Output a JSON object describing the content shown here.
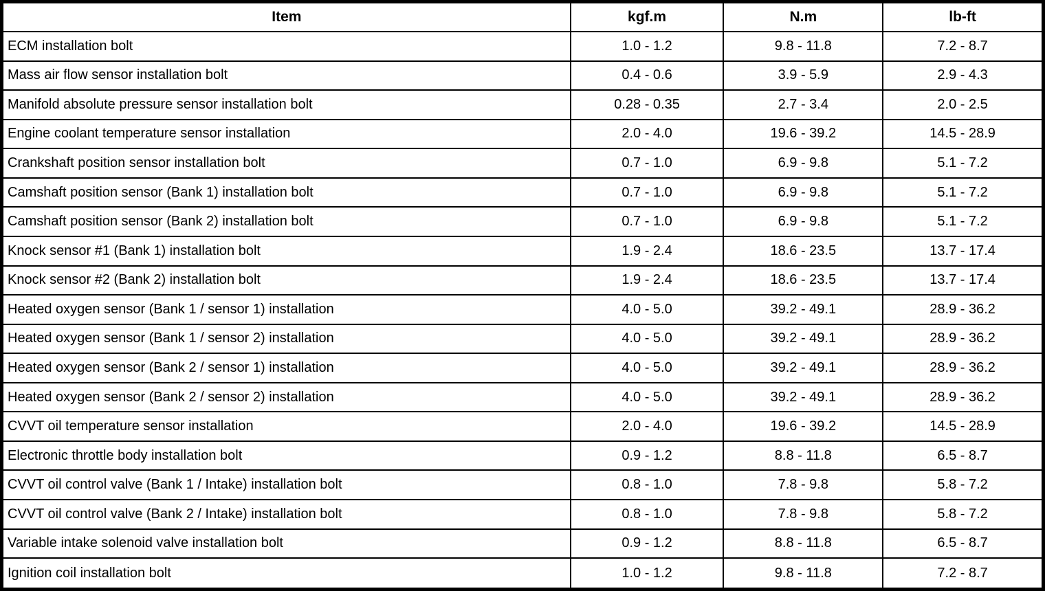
{
  "table": {
    "columns": [
      {
        "key": "item",
        "label": "Item"
      },
      {
        "key": "kgfm",
        "label": "kgf.m"
      },
      {
        "key": "nm",
        "label": "N.m"
      },
      {
        "key": "lbft",
        "label": "lb-ft"
      }
    ],
    "rows": [
      {
        "item": "ECM installation bolt",
        "kgfm": "1.0 - 1.2",
        "nm": "9.8 - 11.8",
        "lbft": "7.2 - 8.7"
      },
      {
        "item": "Mass air flow sensor installation bolt",
        "kgfm": "0.4 - 0.6",
        "nm": "3.9 - 5.9",
        "lbft": "2.9 - 4.3"
      },
      {
        "item": "Manifold absolute pressure sensor installation bolt",
        "kgfm": "0.28 - 0.35",
        "nm": "2.7 - 3.4",
        "lbft": "2.0 - 2.5"
      },
      {
        "item": "Engine coolant temperature sensor installation",
        "kgfm": "2.0 - 4.0",
        "nm": "19.6 - 39.2",
        "lbft": "14.5 - 28.9"
      },
      {
        "item": "Crankshaft position sensor installation bolt",
        "kgfm": "0.7 - 1.0",
        "nm": "6.9 - 9.8",
        "lbft": "5.1 - 7.2"
      },
      {
        "item": "Camshaft position sensor (Bank 1) installation bolt",
        "kgfm": "0.7 - 1.0",
        "nm": "6.9 - 9.8",
        "lbft": "5.1 - 7.2"
      },
      {
        "item": "Camshaft position sensor (Bank 2) installation bolt",
        "kgfm": "0.7 - 1.0",
        "nm": "6.9 - 9.8",
        "lbft": "5.1 - 7.2"
      },
      {
        "item": "Knock sensor #1 (Bank 1) installation bolt",
        "kgfm": "1.9 - 2.4",
        "nm": "18.6 - 23.5",
        "lbft": "13.7 - 17.4"
      },
      {
        "item": "Knock sensor #2 (Bank 2) installation bolt",
        "kgfm": "1.9 - 2.4",
        "nm": "18.6 - 23.5",
        "lbft": "13.7 - 17.4"
      },
      {
        "item": "Heated oxygen sensor (Bank 1 / sensor 1) installation",
        "kgfm": "4.0 - 5.0",
        "nm": "39.2 - 49.1",
        "lbft": "28.9 - 36.2"
      },
      {
        "item": "Heated oxygen sensor (Bank 1 / sensor 2) installation",
        "kgfm": "4.0 - 5.0",
        "nm": "39.2 - 49.1",
        "lbft": "28.9 - 36.2"
      },
      {
        "item": "Heated oxygen sensor (Bank 2 / sensor 1) installation",
        "kgfm": "4.0 - 5.0",
        "nm": "39.2 - 49.1",
        "lbft": "28.9 - 36.2"
      },
      {
        "item": "Heated oxygen sensor (Bank 2 / sensor 2) installation",
        "kgfm": "4.0 - 5.0",
        "nm": "39.2 - 49.1",
        "lbft": "28.9 - 36.2"
      },
      {
        "item": "CVVT oil temperature sensor installation",
        "kgfm": "2.0 - 4.0",
        "nm": "19.6 - 39.2",
        "lbft": "14.5 - 28.9"
      },
      {
        "item": "Electronic throttle body installation bolt",
        "kgfm": "0.9 - 1.2",
        "nm": "8.8 - 11.8",
        "lbft": "6.5 - 8.7"
      },
      {
        "item": "CVVT oil control valve (Bank 1 / Intake) installation bolt",
        "kgfm": "0.8 - 1.0",
        "nm": "7.8 - 9.8",
        "lbft": "5.8 - 7.2"
      },
      {
        "item": "CVVT oil control valve (Bank 2 / Intake) installation bolt",
        "kgfm": "0.8 - 1.0",
        "nm": "7.8 - 9.8",
        "lbft": "5.8 - 7.2"
      },
      {
        "item": "Variable intake solenoid valve installation bolt",
        "kgfm": "0.9 - 1.2",
        "nm": "8.8 - 11.8",
        "lbft": "6.5 - 8.7"
      },
      {
        "item": "Ignition coil installation bolt",
        "kgfm": "1.0 - 1.2",
        "nm": "9.8 - 11.8",
        "lbft": "7.2 - 8.7"
      }
    ]
  },
  "colors": {
    "border": "#000000",
    "background": "#ffffff",
    "text": "#000000"
  }
}
